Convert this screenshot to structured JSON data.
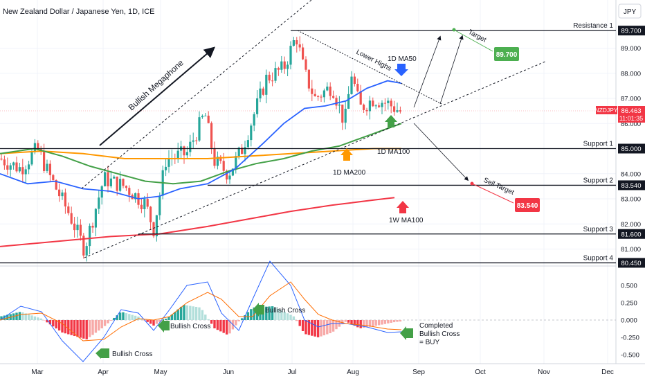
{
  "header": {
    "title": "New Zealand Dollar / Japanese Yen, 1D, ICE",
    "currency": "JPY"
  },
  "chart_data": {
    "type": "candlestick",
    "title": "New Zealand Dollar / Japanese Yen, 1D, ICE",
    "price_axis": {
      "ylim": [
        80.2,
        90.2
      ],
      "ticks": [
        81.0,
        82.0,
        83.0,
        84.0,
        85.0,
        86.0,
        87.0,
        88.0,
        89.0
      ],
      "tick_labels": [
        "81.000",
        "82.000",
        "83.000",
        "84.000",
        "85.000",
        "86.000",
        "87.000",
        "88.000",
        "89.000"
      ]
    },
    "time_axis": {
      "labels": [
        "Mar",
        "Apr",
        "May",
        "Jun",
        "Jul",
        "Aug",
        "Sep",
        "Oct",
        "Nov",
        "Dec"
      ]
    },
    "last_price": {
      "symbol": "NZDJPY",
      "value": "86.463",
      "countdown": "11:01:35"
    },
    "levels": [
      {
        "name": "Resistance 1",
        "value": 89.7,
        "label": "89.700"
      },
      {
        "name": "Support 1",
        "value": 85.0,
        "label": "85.000"
      },
      {
        "name": "Support 2",
        "value": 83.54,
        "label": "83.540"
      },
      {
        "name": "Support 3",
        "value": 81.6,
        "label": "81.600"
      },
      {
        "name": "Support 4",
        "value": 80.45,
        "label": "80.450"
      }
    ],
    "targets": [
      {
        "label": "Target",
        "value": "89.700",
        "color": "#4caf50"
      },
      {
        "label": "Sell Target",
        "value": "83.540",
        "color": "#f23645"
      }
    ],
    "moving_averages": [
      {
        "name": "1D MA50",
        "color": "#2962ff"
      },
      {
        "name": "1D MA100",
        "color": "#43a047"
      },
      {
        "name": "1D MA200",
        "color": "#ff9800"
      },
      {
        "name": "1W MA100",
        "color": "#f23645"
      }
    ],
    "annotations": [
      "Bullish Megaphone",
      "Lower Highs"
    ],
    "macd": {
      "ylim": [
        -0.6,
        0.6
      ],
      "ticks": [
        0.5,
        0.25,
        0.0,
        -0.25,
        -0.5
      ],
      "tick_labels": [
        "0.500",
        "0.250",
        "0.000",
        "-0.250",
        "-0.500"
      ],
      "annotations": [
        "Bullish Cross",
        "Bullish Cross",
        "Bullish Cross"
      ],
      "completed_label": [
        "Completed",
        "Bullish Cross",
        "= BUY"
      ]
    },
    "colors": {
      "bull": "#26a69a",
      "bear": "#ef5350",
      "hist_up": "#26a69a",
      "hist_down": "#f23645"
    }
  }
}
